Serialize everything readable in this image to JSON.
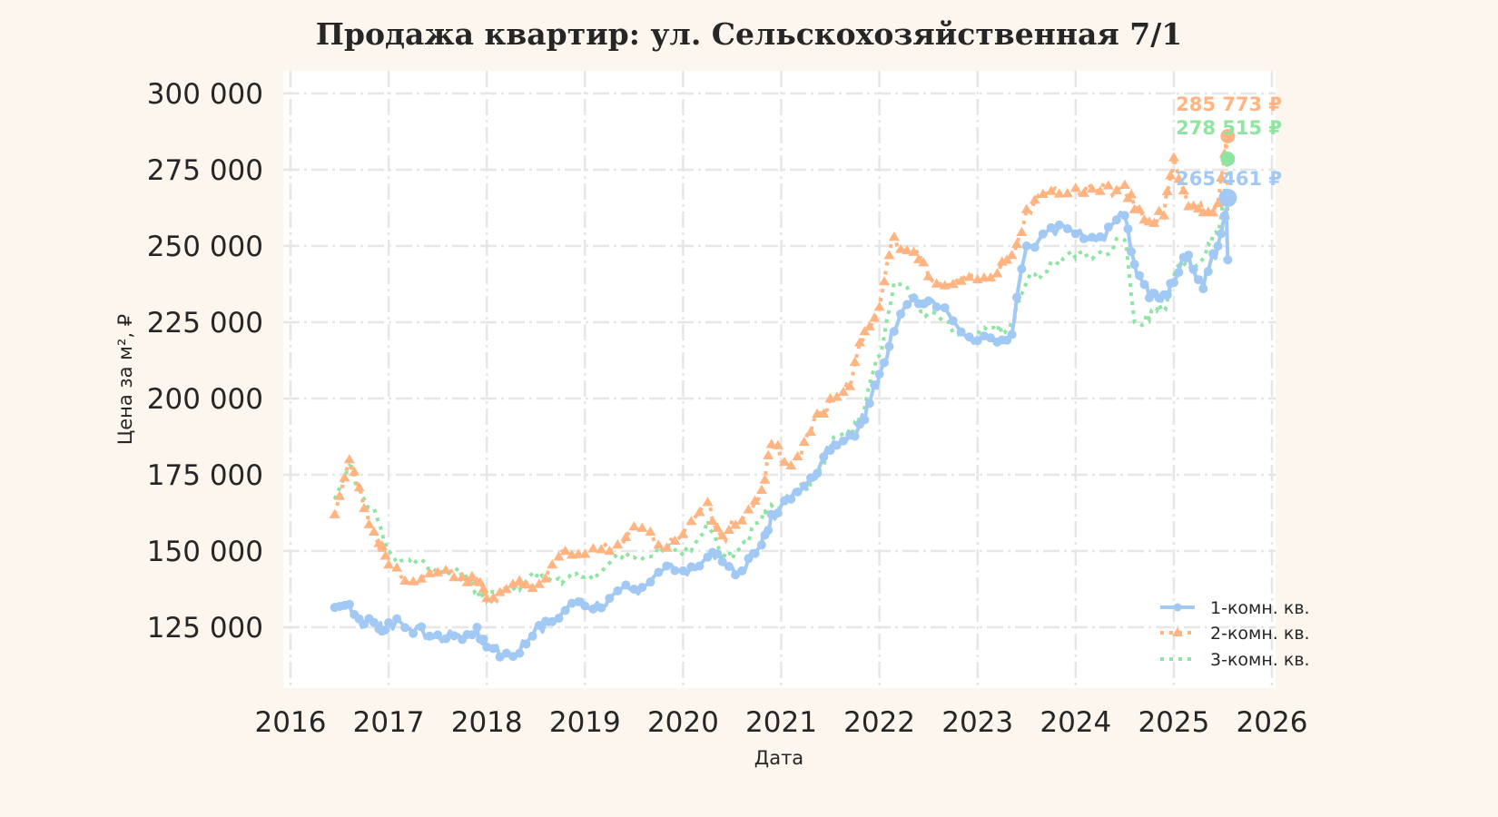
{
  "title": "Продажа квартир: ул. Сельскохозяйственная 7/1",
  "chart_data": {
    "type": "line",
    "title": "Продажа квартир: ул. Сельскохозяйственная 7/1",
    "xlabel": "Дата",
    "ylabel": "Цена за м², ₽",
    "xlim": [
      2016,
      2026
    ],
    "ylim": [
      105000,
      307500
    ],
    "x_ticks": [
      "2016",
      "2017",
      "2018",
      "2019",
      "2020",
      "2021",
      "2022",
      "2023",
      "2024",
      "2025",
      "2026"
    ],
    "y_ticks": [
      "125 000",
      "150 000",
      "175 000",
      "200 000",
      "225 000",
      "250 000",
      "275 000",
      "300 000"
    ],
    "y_tick_values": [
      125000,
      150000,
      175000,
      200000,
      225000,
      250000,
      275000,
      300000
    ],
    "grid": true,
    "legend_position": "lower right",
    "x": [
      2016.45,
      2016.6,
      2016.75,
      2016.9,
      2017.0,
      2017.25,
      2017.5,
      2017.75,
      2017.9,
      2018.0,
      2018.2,
      2018.4,
      2018.6,
      2018.8,
      2019.0,
      2019.25,
      2019.5,
      2019.75,
      2020.0,
      2020.25,
      2020.4,
      2020.6,
      2020.8,
      2020.9,
      2021.1,
      2021.3,
      2021.5,
      2021.7,
      2021.85,
      2022.0,
      2022.15,
      2022.35,
      2022.5,
      2022.75,
      2023.0,
      2023.2,
      2023.35,
      2023.5,
      2023.75,
      2024.0,
      2024.25,
      2024.5,
      2024.6,
      2024.75,
      2024.9,
      2025.0,
      2025.15,
      2025.3,
      2025.45,
      2025.55
    ],
    "series": [
      {
        "name": "1-комн. кв.",
        "color": "#a1c9f4",
        "linestyle": "solid",
        "marker": "pentagon",
        "values": [
          131500,
          132500,
          126000,
          124500,
          126500,
          123000,
          122500,
          121000,
          125000,
          118500,
          116500,
          119500,
          127000,
          130500,
          132000,
          134500,
          137500,
          143000,
          143500,
          148000,
          146500,
          143500,
          152000,
          162000,
          167000,
          174000,
          183000,
          188000,
          193000,
          208000,
          222000,
          233000,
          232000,
          225500,
          219000,
          218500,
          221000,
          250000,
          256000,
          254000,
          253000,
          260000,
          244000,
          233000,
          234000,
          238000,
          247000,
          236000,
          250000,
          265461
        ]
      },
      {
        "name": "2-комн. кв.",
        "color": "#ffb482",
        "linestyle": "dotted",
        "marker": "triangle",
        "values": [
          162000,
          180000,
          164000,
          152500,
          145500,
          140000,
          143000,
          141500,
          140000,
          134500,
          137500,
          139000,
          141000,
          150000,
          149000,
          150000,
          158000,
          152000,
          155500,
          166000,
          155000,
          160000,
          170000,
          185000,
          178000,
          189000,
          200000,
          204000,
          222000,
          230000,
          253000,
          248000,
          240000,
          237500,
          239000,
          241000,
          247000,
          262000,
          268000,
          269000,
          268000,
          270000,
          262000,
          258000,
          260000,
          279000,
          263000,
          261000,
          264000,
          285773
        ]
      },
      {
        "name": "3-комн. кв.",
        "color": "#8de5a1",
        "linestyle": "dotted",
        "marker": "none",
        "values": [
          167000,
          178000,
          167000,
          159000,
          150000,
          145500,
          144500,
          141500,
          137500,
          134000,
          137000,
          140000,
          141500,
          141000,
          141500,
          146000,
          148000,
          151500,
          148500,
          160000,
          147000,
          152500,
          160000,
          165000,
          167000,
          172000,
          184000,
          190000,
          197000,
          214000,
          238000,
          232000,
          228000,
          221500,
          221000,
          222000,
          225000,
          238000,
          245000,
          246000,
          248000,
          252000,
          225000,
          226000,
          230000,
          240000,
          244000,
          246000,
          254000,
          278515
        ]
      }
    ],
    "annotations": [
      {
        "text": "285 773 ₽",
        "series": "2-комн. кв.",
        "value": 285773,
        "color": "#ffb482"
      },
      {
        "text": "278 515 ₽",
        "series": "3-комн. кв.",
        "value": 278515,
        "color": "#8de5a1"
      },
      {
        "text": "265 461 ₽",
        "series": "1-комн. кв.",
        "value": 265461,
        "color": "#a1c9f4"
      }
    ]
  },
  "legend": {
    "items": [
      {
        "label": "1-комн. кв.",
        "color": "#a1c9f4"
      },
      {
        "label": "2-комн. кв.",
        "color": "#ffb482"
      },
      {
        "label": "3-комн. кв.",
        "color": "#8de5a1"
      }
    ]
  },
  "colors": {
    "page_bg": "#fdf6ee",
    "plot_bg": "#ffffff",
    "grid": "#e6e6e6",
    "text": "#262626"
  }
}
